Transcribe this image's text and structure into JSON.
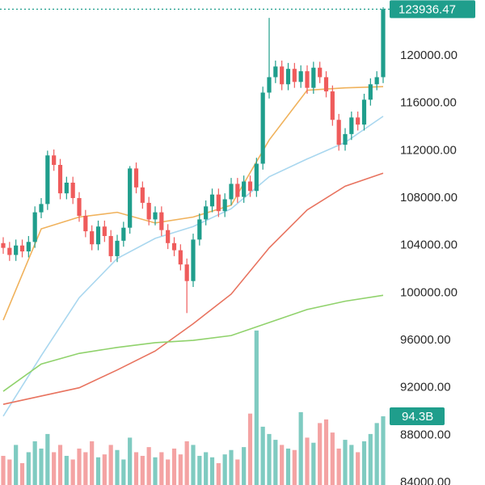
{
  "chart_data": {
    "type": "candlestick",
    "up_color": "#1f9e8c",
    "down_color": "#ef5b5b",
    "volume_up_color": "#7fcbc1",
    "volume_down_color": "#f4a3a3",
    "ylim": [
      83795,
      124710
    ],
    "yticks": [
      {
        "value": 84000,
        "label": "84000.00"
      },
      {
        "value": 88000,
        "label": "88000.00"
      },
      {
        "value": 92000,
        "label": "92000.00"
      },
      {
        "value": 96000,
        "label": "96000.00"
      },
      {
        "value": 100000,
        "label": "100000.00"
      },
      {
        "value": 104000,
        "label": "104000.00"
      },
      {
        "value": 108000,
        "label": "108000.00"
      },
      {
        "value": 112000,
        "label": "112000.00"
      },
      {
        "value": 116000,
        "label": "116000.00"
      },
      {
        "value": 120000,
        "label": "120000.00"
      }
    ],
    "open": [
      104200,
      103800,
      103200,
      104000,
      103500,
      104300,
      106800,
      107500,
      111600,
      110800,
      108400,
      109300,
      108000,
      106500,
      105200,
      104100,
      105600,
      104800,
      103100,
      104400,
      105500,
      110500,
      108900,
      107600,
      106200,
      106800,
      105300,
      104200,
      103600,
      102400,
      101000,
      104500,
      106200,
      107300,
      108300,
      106900,
      107900,
      109200,
      108100,
      109400,
      108600,
      110900,
      116900,
      118200,
      119100,
      117600,
      118900,
      117800,
      118700,
      117300,
      119000,
      118200,
      117000,
      114600,
      112500,
      113400,
      114800,
      114200,
      116300,
      117600,
      118200
    ],
    "high": [
      104700,
      104300,
      104500,
      104500,
      104800,
      107300,
      108000,
      112000,
      112100,
      111300,
      109800,
      109800,
      108500,
      107000,
      105700,
      106100,
      106100,
      105300,
      104900,
      106000,
      110700,
      111000,
      109400,
      108100,
      107300,
      107300,
      105800,
      104700,
      104100,
      102900,
      105000,
      106700,
      107800,
      108800,
      108800,
      108400,
      109700,
      109700,
      109900,
      109900,
      111400,
      117400,
      123200,
      119600,
      119600,
      119400,
      119400,
      119200,
      119200,
      119500,
      119500,
      118700,
      117500,
      115100,
      113900,
      115300,
      115300,
      116800,
      118100,
      118700,
      124100
    ],
    "low": [
      103300,
      102700,
      102700,
      103000,
      103000,
      103800,
      106300,
      107000,
      110300,
      107900,
      107900,
      107500,
      106000,
      104700,
      103600,
      103600,
      104300,
      102600,
      102600,
      103900,
      105000,
      108400,
      107100,
      105700,
      105700,
      104800,
      103700,
      103100,
      101900,
      98300,
      100500,
      104000,
      105700,
      106800,
      106400,
      106400,
      107400,
      107600,
      107600,
      108100,
      108100,
      110400,
      116400,
      117700,
      117100,
      117100,
      117300,
      117300,
      116800,
      116800,
      117700,
      116500,
      114100,
      112000,
      112000,
      112900,
      113700,
      113700,
      115800,
      117100,
      117700
    ],
    "close": [
      103800,
      103200,
      104000,
      103500,
      104300,
      106800,
      107500,
      111600,
      110800,
      108400,
      109300,
      108000,
      106500,
      105200,
      104100,
      105600,
      104800,
      103100,
      104400,
      105500,
      110500,
      108900,
      107600,
      106200,
      106800,
      105300,
      104200,
      103600,
      102400,
      101000,
      104500,
      106200,
      107300,
      108300,
      106900,
      107900,
      109200,
      108100,
      109400,
      108600,
      110900,
      116900,
      118200,
      119100,
      117600,
      118900,
      117800,
      118700,
      117300,
      119000,
      118200,
      117000,
      114600,
      112500,
      113400,
      114800,
      114200,
      116300,
      117600,
      118200,
      123936.47
    ],
    "volume": [
      40,
      35,
      55,
      30,
      45,
      60,
      50,
      70,
      45,
      55,
      40,
      35,
      50,
      45,
      60,
      38,
      42,
      55,
      48,
      35,
      65,
      45,
      40,
      52,
      38,
      45,
      35,
      50,
      42,
      60,
      55,
      40,
      45,
      38,
      30,
      42,
      48,
      35,
      52,
      98,
      212,
      80,
      70,
      62,
      55,
      50,
      48,
      100,
      65,
      58,
      85,
      90,
      72,
      50,
      62,
      55,
      45,
      60,
      70,
      85,
      94.3
    ],
    "volume_lim": [
      0,
      665.6
    ],
    "volume_marker": {
      "value": 94.3,
      "label": "94.3B"
    },
    "moving_averages": {
      "x": [
        0,
        6,
        12,
        18,
        24,
        30,
        36,
        42,
        48,
        54,
        60
      ],
      "series": [
        {
          "color": "#f0b25c",
          "values": [
            97700,
            105400,
            106400,
            106800,
            105900,
            106400,
            107400,
            112900,
            117100,
            117300,
            117400
          ]
        },
        {
          "color": "#a9d7ef",
          "values": [
            89600,
            94700,
            99600,
            102900,
            104600,
            105600,
            107100,
            109800,
            111300,
            112700,
            114900
          ]
        },
        {
          "color": "#e8735f",
          "values": [
            90600,
            91300,
            92000,
            93500,
            95100,
            97400,
            99900,
            103800,
            107000,
            109000,
            110100
          ]
        },
        {
          "color": "#90d26c",
          "values": [
            91700,
            94000,
            94900,
            95400,
            95800,
            96000,
            96400,
            97500,
            98600,
            99300,
            99800
          ]
        }
      ]
    }
  }
}
